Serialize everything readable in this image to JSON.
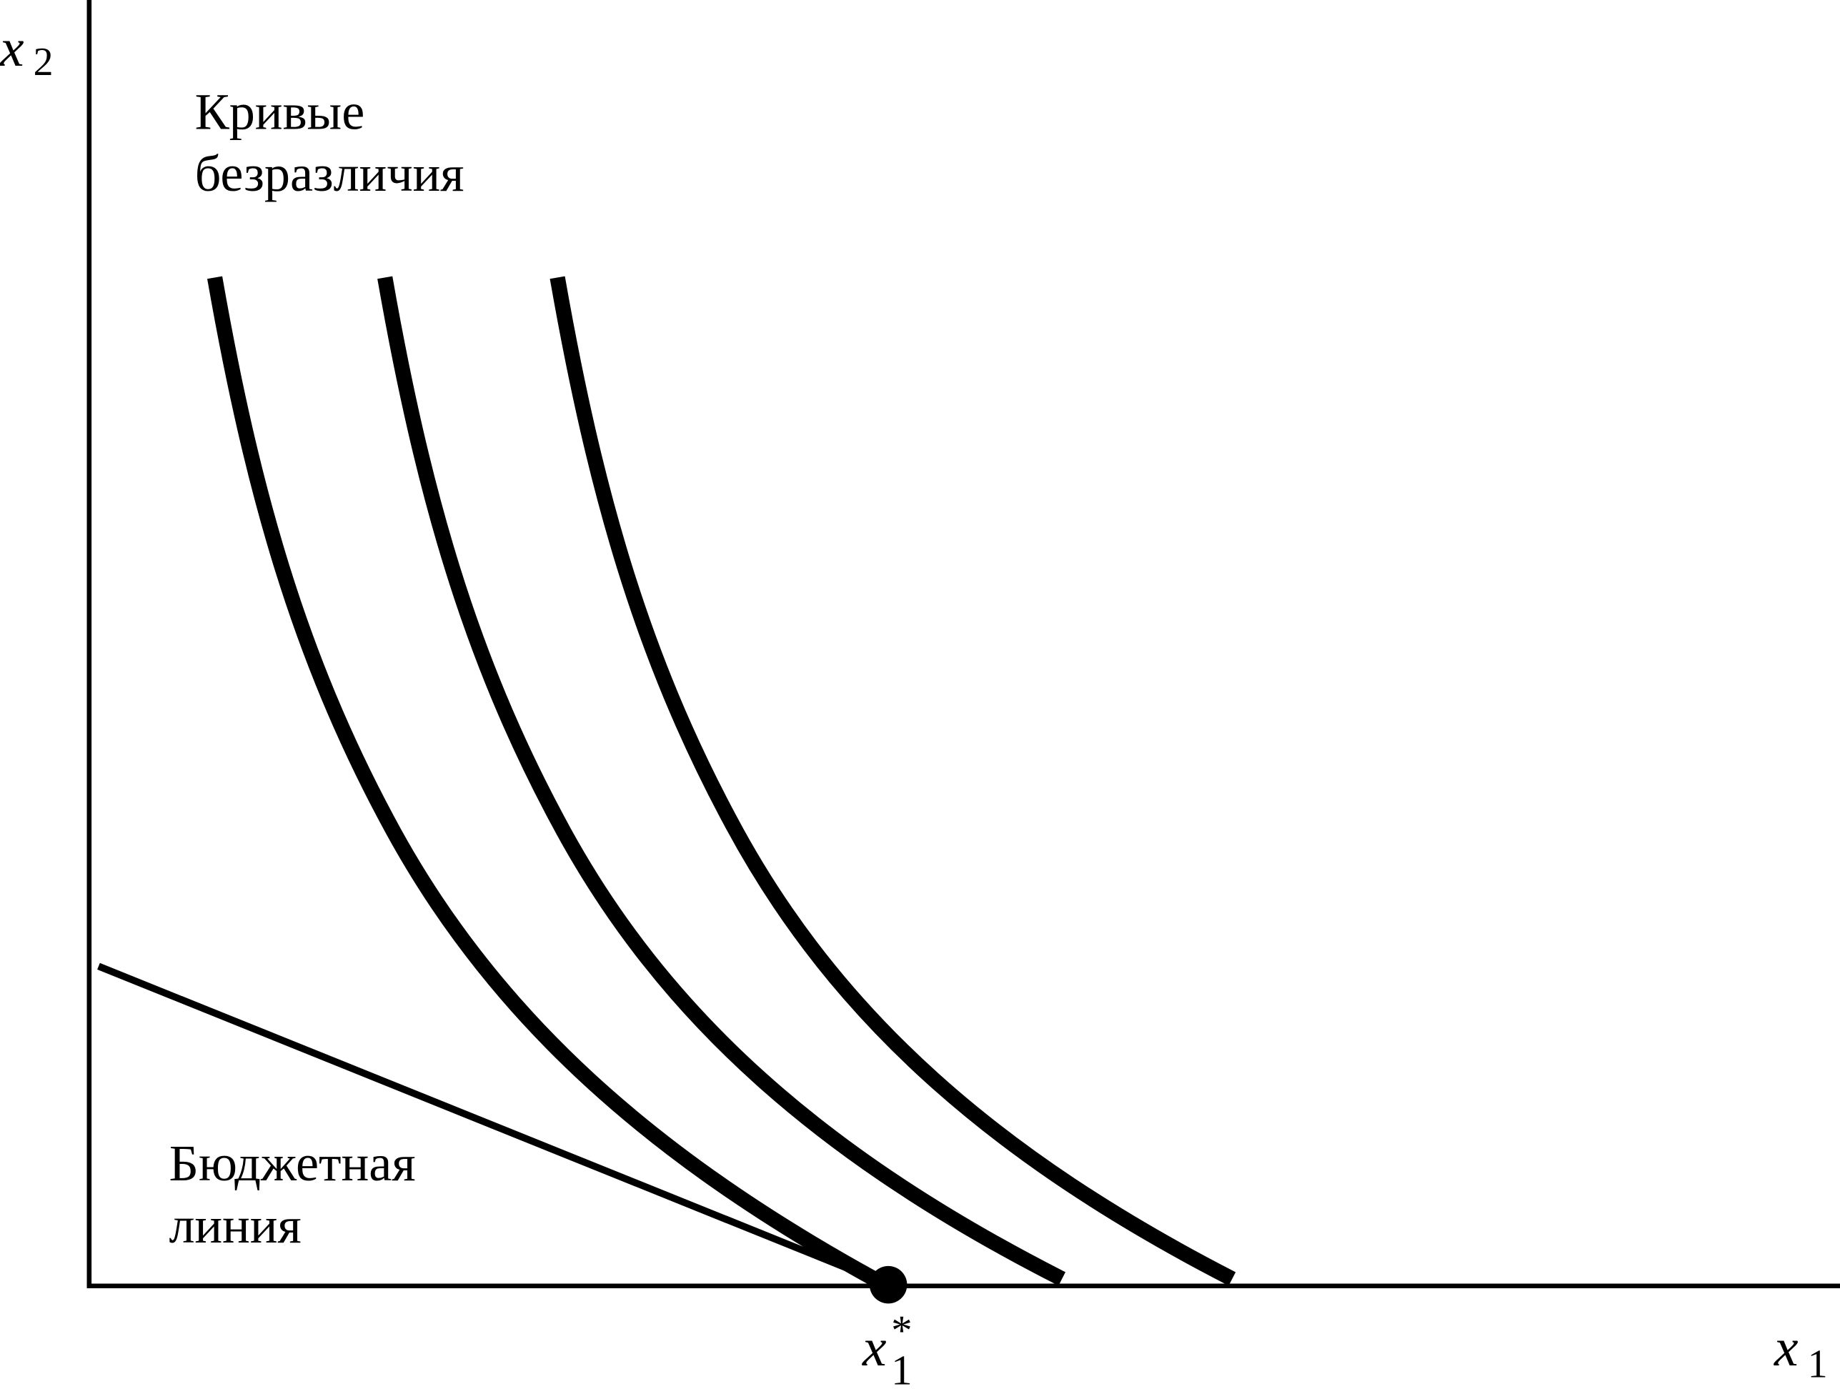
{
  "axes": {
    "y_label": {
      "base": "x",
      "sub": "2"
    },
    "x_label": {
      "base": "x",
      "sub": "1"
    }
  },
  "annotations": {
    "curves": [
      "Кривые",
      "безразличия"
    ],
    "budget": [
      "Бюджетная",
      "линия"
    ]
  },
  "point_label": {
    "base": "x",
    "sup": "*",
    "sub": "1"
  }
}
